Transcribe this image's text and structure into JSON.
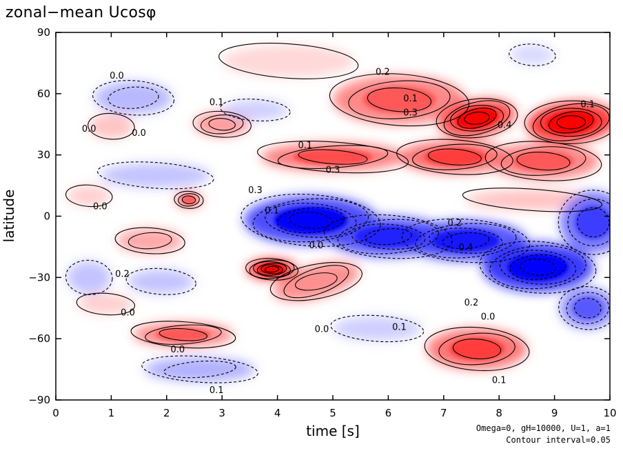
{
  "chart_data": {
    "type": "heatmap",
    "title": "zonal−mean Ucosφ",
    "xlabel": "time [s]",
    "ylabel": "latitude",
    "xlim": [
      0,
      10
    ],
    "ylim": [
      -90,
      90
    ],
    "x_ticks": [
      "0",
      "1",
      "2",
      "3",
      "4",
      "5",
      "6",
      "7",
      "8",
      "9",
      "10"
    ],
    "y_ticks": [
      "90",
      "60",
      "30",
      "0",
      "−30",
      "−60",
      "−90"
    ],
    "contour_interval": 0.05,
    "colormap": {
      "positive": "#ff0000",
      "negative": "#0000ff",
      "zero": "#ffffff"
    },
    "annotations": [
      "Omega=0, gH=10000, U=1, a=1",
      "Contour interval=0.05"
    ],
    "contour_labels": [
      {
        "text": "0.2",
        "t": 5.9,
        "lat": 71
      },
      {
        "text": "0.1",
        "t": 2.9,
        "lat": 56
      },
      {
        "text": "0.1",
        "t": 6.4,
        "lat": 58
      },
      {
        "text": "0.3",
        "t": 6.4,
        "lat": 51
      },
      {
        "text": "0.4",
        "t": 8.1,
        "lat": 45
      },
      {
        "text": "0.1",
        "t": 9.6,
        "lat": 55
      },
      {
        "text": "0.0",
        "t": 1.1,
        "lat": 69
      },
      {
        "text": "0.0",
        "t": 0.6,
        "lat": 43
      },
      {
        "text": "0.0",
        "t": 1.5,
        "lat": 41
      },
      {
        "text": "0.1",
        "t": 4.5,
        "lat": 35
      },
      {
        "text": "0.3",
        "t": 5.0,
        "lat": 23
      },
      {
        "text": "0.3",
        "t": 3.6,
        "lat": 13
      },
      {
        "text": "0.0",
        "t": 0.8,
        "lat": 5
      },
      {
        "text": "0.1",
        "t": 3.9,
        "lat": 3
      },
      {
        "text": "0.2",
        "t": 7.2,
        "lat": -3
      },
      {
        "text": "0.0",
        "t": 4.7,
        "lat": -14
      },
      {
        "text": "0.4",
        "t": 7.4,
        "lat": -15
      },
      {
        "text": "0.2",
        "t": 1.2,
        "lat": -28
      },
      {
        "text": "0.0",
        "t": 1.3,
        "lat": -47
      },
      {
        "text": "0.2",
        "t": 7.5,
        "lat": -42
      },
      {
        "text": "0.0",
        "t": 7.8,
        "lat": -49
      },
      {
        "text": "0.1",
        "t": 6.2,
        "lat": -54
      },
      {
        "text": "0.0",
        "t": 4.8,
        "lat": -55
      },
      {
        "text": "0.0",
        "t": 2.2,
        "lat": -65
      },
      {
        "text": "0.1",
        "t": 8.0,
        "lat": -80
      },
      {
        "text": "0.1",
        "t": 2.9,
        "lat": -85
      }
    ]
  }
}
